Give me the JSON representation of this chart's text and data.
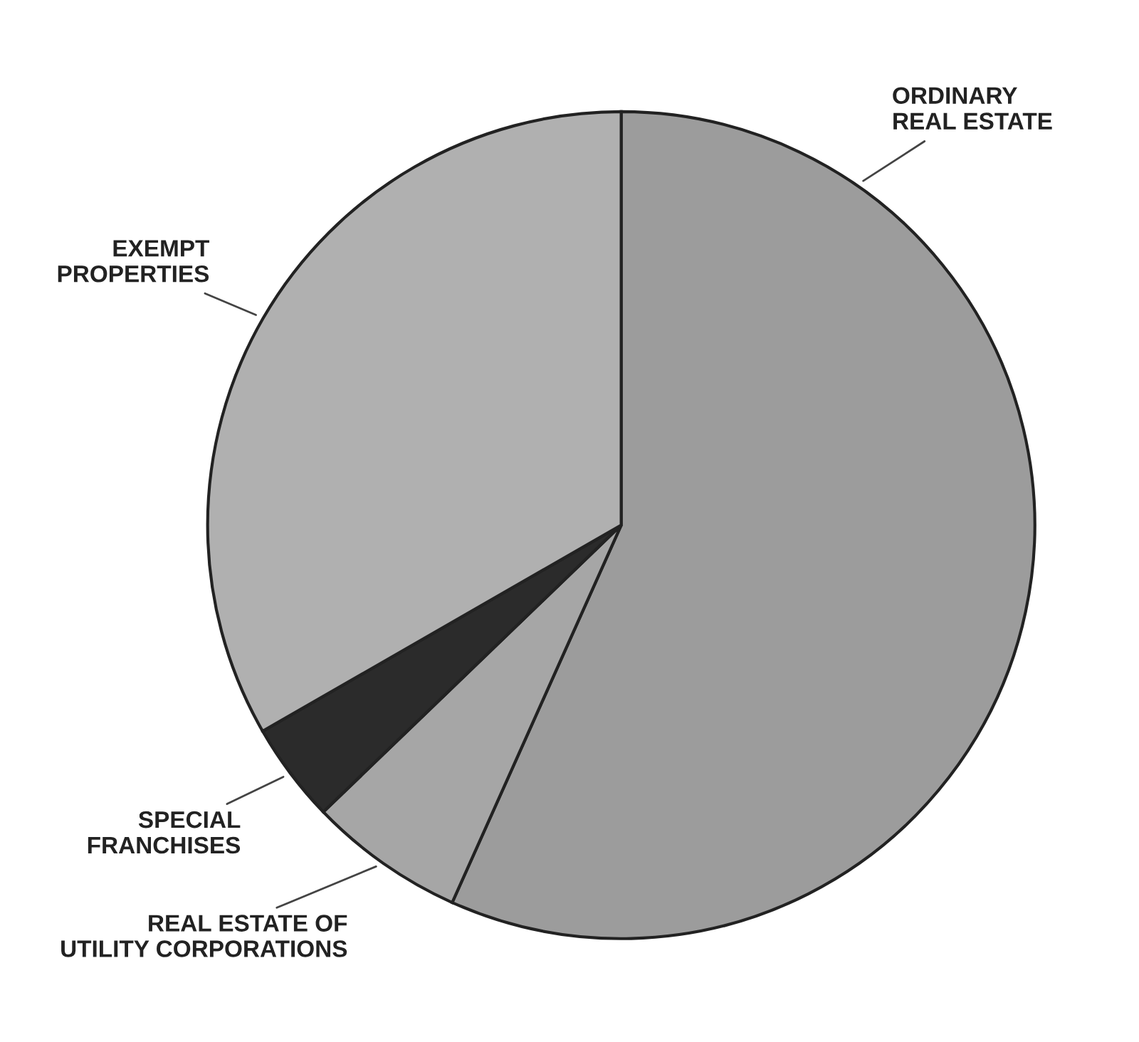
{
  "chart_data": {
    "type": "pie",
    "categories": [
      "ORDINARY\nREAL ESTATE",
      "REAL ESTATE OF\nUTILITY CORPORATIONS",
      "SPECIAL\nFRANCHISES",
      "EXEMPT\nPROPERTIES"
    ],
    "values": [
      56.7,
      6.1,
      3.9,
      33.3
    ],
    "colors": [
      "#9c9c9c",
      "#a6a6a6",
      "#2b2b2b",
      "#b0b0b0"
    ]
  }
}
